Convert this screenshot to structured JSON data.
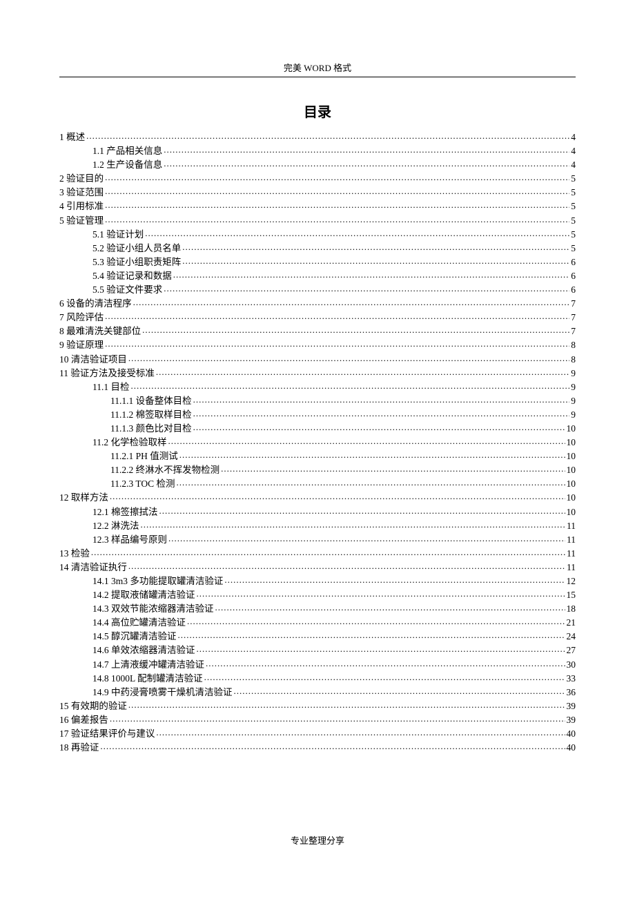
{
  "header": "完美 WORD 格式",
  "title": "目录",
  "footer": "专业整理分享",
  "toc": [
    {
      "level": 0,
      "label": "1  概述",
      "page": "4"
    },
    {
      "level": 1,
      "label": "1.1  产品相关信息",
      "page": "4"
    },
    {
      "level": 1,
      "label": "1.2  生产设备信息",
      "page": "4"
    },
    {
      "level": 0,
      "label": "2  验证目的",
      "page": "5"
    },
    {
      "level": 0,
      "label": "3  验证范围",
      "page": "5"
    },
    {
      "level": 0,
      "label": "4  引用标准",
      "page": "5"
    },
    {
      "level": 0,
      "label": "5    验证管理",
      "page": "5"
    },
    {
      "level": 1,
      "label": "5.1  验证计划",
      "page": "5"
    },
    {
      "level": 1,
      "label": "5.2  验证小组人员名单",
      "page": "5"
    },
    {
      "level": 1,
      "label": "5.3  验证小组职责矩阵",
      "page": "6"
    },
    {
      "level": 1,
      "label": "5.4  验证记录和数据",
      "page": "6"
    },
    {
      "level": 1,
      "label": "5.5  验证文件要求",
      "page": "6"
    },
    {
      "level": 0,
      "label": "6  设备的清洁程序",
      "page": "7"
    },
    {
      "level": 0,
      "label": "7  风险评估",
      "page": "7"
    },
    {
      "level": 0,
      "label": "8  最难清洗关键部位",
      "page": "7"
    },
    {
      "level": 0,
      "label": "9  验证原理",
      "page": "8"
    },
    {
      "level": 0,
      "label": "10  清洁验证项目",
      "page": "8"
    },
    {
      "level": 0,
      "label": "11  验证方法及接受标准",
      "page": "9"
    },
    {
      "level": 1,
      "label": "11.1  目检",
      "page": "9"
    },
    {
      "level": 2,
      "label": "11.1.1  设备整体目检",
      "page": "9"
    },
    {
      "level": 2,
      "label": "11.1.2  棉签取样目检",
      "page": "9"
    },
    {
      "level": 2,
      "label": "11.1.3  颜色比对目检",
      "page": "10"
    },
    {
      "level": 1,
      "label": "11.2  化学检验取样",
      "page": "10"
    },
    {
      "level": 2,
      "label": "11.2.1 PH 值测试",
      "page": "10"
    },
    {
      "level": 2,
      "label": "11.2.2  终淋水不挥发物检测",
      "page": "10"
    },
    {
      "level": 2,
      "label": "11.2.3 TOC 检测",
      "page": "10"
    },
    {
      "level": 0,
      "label": "12  取样方法",
      "page": "10"
    },
    {
      "level": 1,
      "label": "12.1  棉签擦拭法",
      "page": "10"
    },
    {
      "level": 1,
      "label": "12.2  淋洗法",
      "page": "11"
    },
    {
      "level": 1,
      "label": "12.3  样品编号原则",
      "page": "11"
    },
    {
      "level": 0,
      "label": "13 检验",
      "page": "11"
    },
    {
      "level": 0,
      "label": "14  清洁验证执行",
      "page": "11"
    },
    {
      "level": 1,
      "label": "14.1    3m3 多功能提取罐清洁验证",
      "page": "12"
    },
    {
      "level": 1,
      "label": "14.2    提取液储罐清洁验证",
      "page": "15"
    },
    {
      "level": 1,
      "label": "14.3    双效节能浓缩器清洁验证",
      "page": "18"
    },
    {
      "level": 1,
      "label": "14.4    高位贮罐清洁验证",
      "page": "21"
    },
    {
      "level": 1,
      "label": "14.5    醇沉罐清洁验证",
      "page": "24"
    },
    {
      "level": 1,
      "label": "14.6  单效浓缩器清洁验证",
      "page": "27"
    },
    {
      "level": 1,
      "label": "14.7  上清液缓冲罐清洁验证",
      "page": "30"
    },
    {
      "level": 1,
      "label": "14.8 1000L 配制罐清洁验证",
      "page": "33"
    },
    {
      "level": 1,
      "label": "14.9  中药浸膏喷雾干燥机清洁验证",
      "page": "36"
    },
    {
      "level": 0,
      "label": "15  有效期的验证",
      "page": "39"
    },
    {
      "level": 0,
      "label": "16  偏差报告",
      "page": "39"
    },
    {
      "level": 0,
      "label": "17  验证结果评价与建议",
      "page": "40"
    },
    {
      "level": 0,
      "label": "18  再验证",
      "page": "40"
    }
  ]
}
